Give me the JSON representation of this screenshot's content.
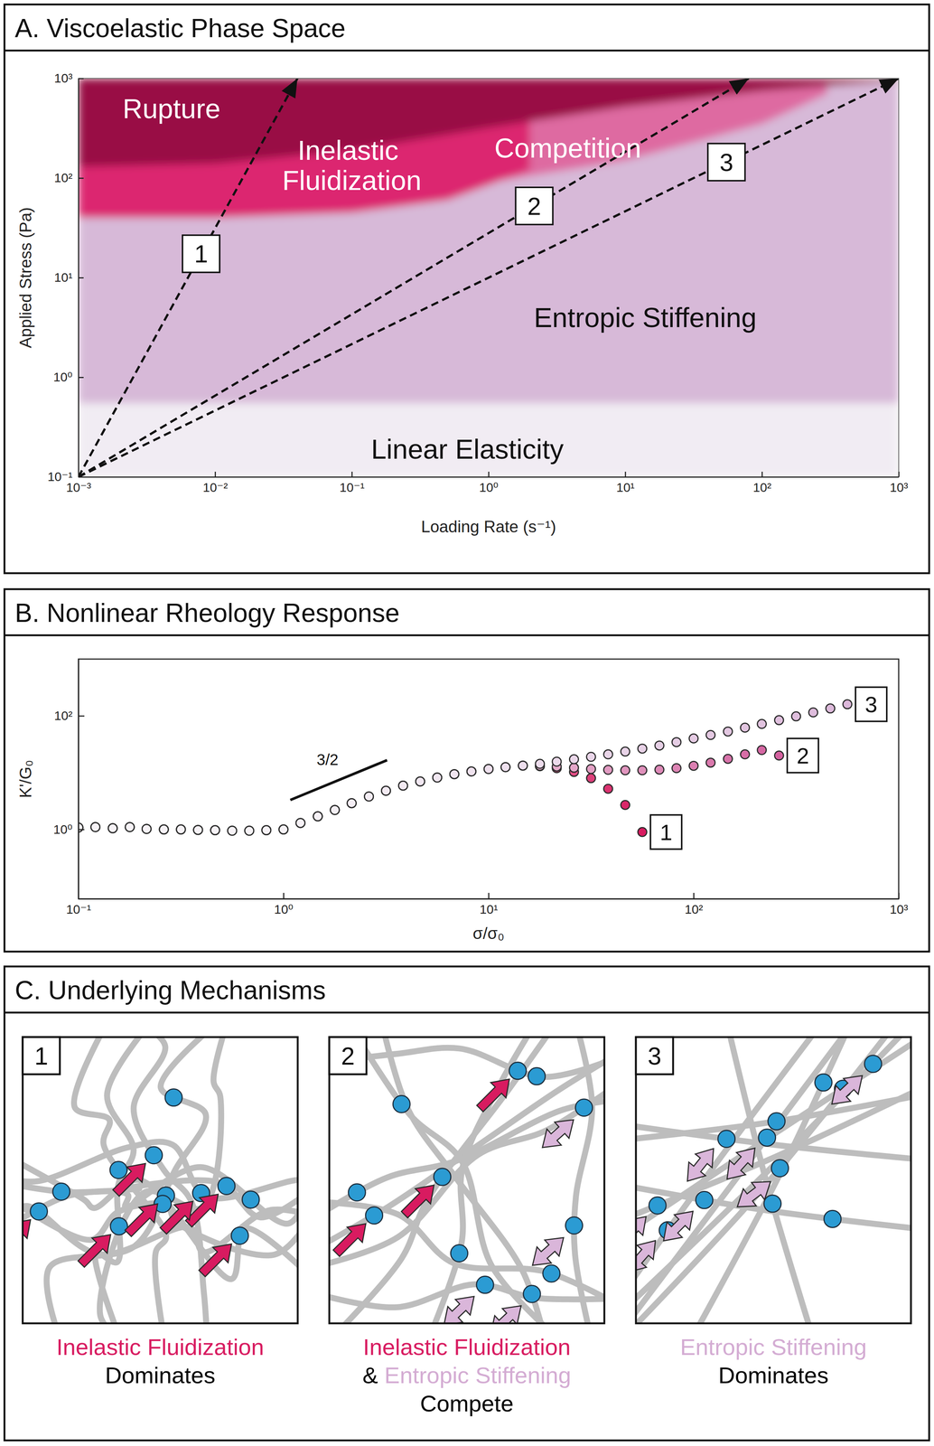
{
  "chart_data": [
    {
      "type": "area",
      "title": "A. Viscoelastic Phase Space",
      "x_label": "Loading Rate (s⁻¹)",
      "y_label": "Applied Stress (Pa)",
      "log": true,
      "xlim": [
        0.001,
        1000
      ],
      "ylim": [
        0.1,
        1000
      ],
      "xticks": [
        {
          "value": 0.001,
          "label": "10⁻³"
        },
        {
          "value": 0.01,
          "label": "10⁻²"
        },
        {
          "value": 0.1,
          "label": "10⁻¹"
        },
        {
          "value": 1,
          "label": "10⁰"
        },
        {
          "value": 10,
          "label": "10¹"
        },
        {
          "value": 100,
          "label": "10²"
        },
        {
          "value": 1000,
          "label": "10³"
        }
      ],
      "yticks": [
        {
          "value": 0.1,
          "label": "10⁻¹"
        },
        {
          "value": 1,
          "label": "10⁰"
        },
        {
          "value": 10,
          "label": "10¹"
        },
        {
          "value": 100,
          "label": "10²"
        },
        {
          "value": 1000,
          "label": "10³"
        }
      ],
      "series": [
        {
          "name": "Linear Elasticity",
          "color": "#f1ecf3",
          "x": [
            0.001,
            1000
          ],
          "base": [
            0.1,
            0.1
          ],
          "values": [
            0.55,
            0.55
          ],
          "label_at": [
            0.7,
            0.19
          ]
        },
        {
          "name": "Entropic Stiffening",
          "color": "#d7b9d8",
          "x": [
            0.001,
            1000
          ],
          "base": [
            0.55,
            0.55
          ],
          "values": [
            1000,
            1000
          ],
          "label_at": [
            14,
            4
          ]
        },
        {
          "name": "Competition",
          "color": "#de6aa1",
          "x": [
            0.1,
            1,
            10,
            100,
            300
          ],
          "base": [
            50,
            90,
            150,
            350,
            700
          ],
          "values": [
            200,
            450,
            800,
            1000,
            1000
          ],
          "label_at": [
            3.8,
            200
          ]
        },
        {
          "name": "Inelastic Fluidization",
          "color": "#dc2670",
          "x": [
            0.001,
            0.01,
            0.1,
            0.5,
            2
          ],
          "base": [
            40,
            40,
            45,
            60,
            120
          ],
          "values": [
            200,
            300,
            400,
            600,
            800
          ],
          "label_at": [
            0.1,
            130
          ]
        },
        {
          "name": "Rupture",
          "color": "#990a45",
          "x": [
            0.001,
            0.01,
            0.1,
            1,
            10,
            100,
            1000
          ],
          "base": [
            130,
            140,
            190,
            320,
            520,
            750,
            950
          ],
          "values": [
            1000,
            1000,
            1000,
            1000,
            1000,
            1000,
            1000
          ],
          "label_at": [
            0.0048,
            500
          ]
        }
      ],
      "arrows": [
        {
          "label": "1",
          "x": [
            0.001,
            0.04
          ],
          "y": [
            0.1,
            1000
          ]
        },
        {
          "label": "2",
          "x": [
            0.001,
            80
          ],
          "y": [
            0.1,
            1000
          ]
        },
        {
          "label": "3",
          "x": [
            0.001,
            1000
          ],
          "y": [
            0.1,
            1000
          ]
        }
      ]
    },
    {
      "type": "scatter",
      "title": "B. Nonlinear Rheology Response",
      "x_label": "σ/σ₀",
      "y_label": "K'/G₀",
      "log": true,
      "marker": "circle",
      "xlim": [
        0.1,
        1000
      ],
      "ylim": [
        0.06,
        1000
      ],
      "xticks": [
        {
          "value": 0.1,
          "label": "10⁻¹"
        },
        {
          "value": 1,
          "label": "10⁰"
        },
        {
          "value": 10,
          "label": "10¹"
        },
        {
          "value": 100,
          "label": "10²"
        },
        {
          "value": 1000,
          "label": "10³"
        }
      ],
      "yticks": [
        {
          "value": 1,
          "label": "10⁰"
        },
        {
          "value": 100,
          "label": "10²"
        }
      ],
      "series": [
        {
          "name": "1",
          "color": "#d81b60",
          "x": [
            0.1,
            0.121,
            0.147,
            0.178,
            0.215,
            0.261,
            0.316,
            0.383,
            0.464,
            0.562,
            0.681,
            0.825,
            1,
            1.21,
            1.47,
            1.78,
            2.15,
            2.61,
            3.16,
            3.83,
            4.64,
            5.62,
            6.81,
            8.25,
            10,
            12.1,
            14.7,
            17.8,
            21.5,
            26.1,
            31.6,
            38.3,
            46.4,
            56.2
          ],
          "values": [
            1.08,
            1.1,
            1.05,
            1.1,
            1.02,
            1.0,
            1.0,
            0.98,
            0.97,
            0.95,
            0.95,
            0.97,
            1.0,
            1.3,
            1.7,
            2.2,
            2.9,
            3.8,
            4.8,
            5.9,
            7.0,
            8.2,
            9.4,
            10.5,
            11.6,
            12.5,
            13.3,
            13.0,
            12.0,
            10.3,
            8.0,
            5.2,
            2.7,
            0.9
          ]
        },
        {
          "name": "2",
          "color": "#d4619f",
          "x": [
            0.1,
            0.121,
            0.147,
            0.178,
            0.215,
            0.261,
            0.316,
            0.383,
            0.464,
            0.562,
            0.681,
            0.825,
            1,
            1.21,
            1.47,
            1.78,
            2.15,
            2.61,
            3.16,
            3.83,
            4.64,
            5.62,
            6.81,
            8.25,
            10,
            12.1,
            14.7,
            17.8,
            21.5,
            26.1,
            31.6,
            38.3,
            46.4,
            56.2,
            68.1,
            82.5,
            100,
            121,
            147,
            178,
            215,
            261
          ],
          "values": [
            1.08,
            1.1,
            1.05,
            1.1,
            1.02,
            1.0,
            1.0,
            0.98,
            0.97,
            0.95,
            0.95,
            0.97,
            1.0,
            1.3,
            1.7,
            2.2,
            2.9,
            3.8,
            4.8,
            5.9,
            7.0,
            8.2,
            9.4,
            10.5,
            11.6,
            12.5,
            13.3,
            13.2,
            12.8,
            12.2,
            11.6,
            11.2,
            11.0,
            11.0,
            11.3,
            12.0,
            13.2,
            15.0,
            17.5,
            21.0,
            25.0,
            20.0
          ]
        },
        {
          "name": "3",
          "color": "#dcb8da",
          "x": [
            0.1,
            0.121,
            0.147,
            0.178,
            0.215,
            0.261,
            0.316,
            0.383,
            0.464,
            0.562,
            0.681,
            0.825,
            1,
            1.21,
            1.47,
            1.78,
            2.15,
            2.61,
            3.16,
            3.83,
            4.64,
            5.62,
            6.81,
            8.25,
            10,
            12.1,
            14.7,
            17.8,
            21.5,
            26.1,
            31.6,
            38.3,
            46.4,
            56.2,
            68.1,
            82.5,
            100,
            121,
            147,
            178,
            215,
            261,
            316,
            383,
            464,
            562
          ],
          "values": [
            1.08,
            1.1,
            1.05,
            1.1,
            1.02,
            1.0,
            1.0,
            0.98,
            0.97,
            0.95,
            0.95,
            0.97,
            1.0,
            1.3,
            1.7,
            2.2,
            2.9,
            3.8,
            4.8,
            5.9,
            7.0,
            8.2,
            9.4,
            10.5,
            11.6,
            12.5,
            13.3,
            14.3,
            15.6,
            17.2,
            19,
            21,
            23.5,
            26.5,
            30,
            34.5,
            40,
            46,
            53,
            62,
            72,
            84,
            98,
            115,
            135,
            160
          ]
        }
      ],
      "slope_line": {
        "x": [
          1.08,
          3.2
        ],
        "y": [
          3.3,
          16.6
        ]
      },
      "annotations": [
        {
          "text": "3/2",
          "x": 1.64,
          "y": 13.7
        }
      ]
    }
  ],
  "diagram": {
    "title": "C. Underlying Mechanisms",
    "panels": [
      {
        "label": "1",
        "caption": [
          [
            {
              "text": "Inelastic Fluidization",
              "color": "#d81b60"
            }
          ],
          [
            {
              "text": "Dominates",
              "color": "#000000"
            }
          ]
        ]
      },
      {
        "label": "2",
        "caption": [
          [
            {
              "text": "Inelastic Fluidization",
              "color": "#d81b60"
            }
          ],
          [
            {
              "text": "&",
              "color": "#000000"
            },
            {
              "text": "Entropic Stiffening",
              "color": "#d4acd3"
            }
          ],
          [
            {
              "text": "Compete",
              "color": "#000000"
            }
          ]
        ]
      },
      {
        "label": "3",
        "caption": [
          [
            {
              "text": "Entropic Stiffening",
              "color": "#d4acd3"
            }
          ],
          [
            {
              "text": "Dominates",
              "color": "#000000"
            }
          ]
        ]
      }
    ]
  }
}
